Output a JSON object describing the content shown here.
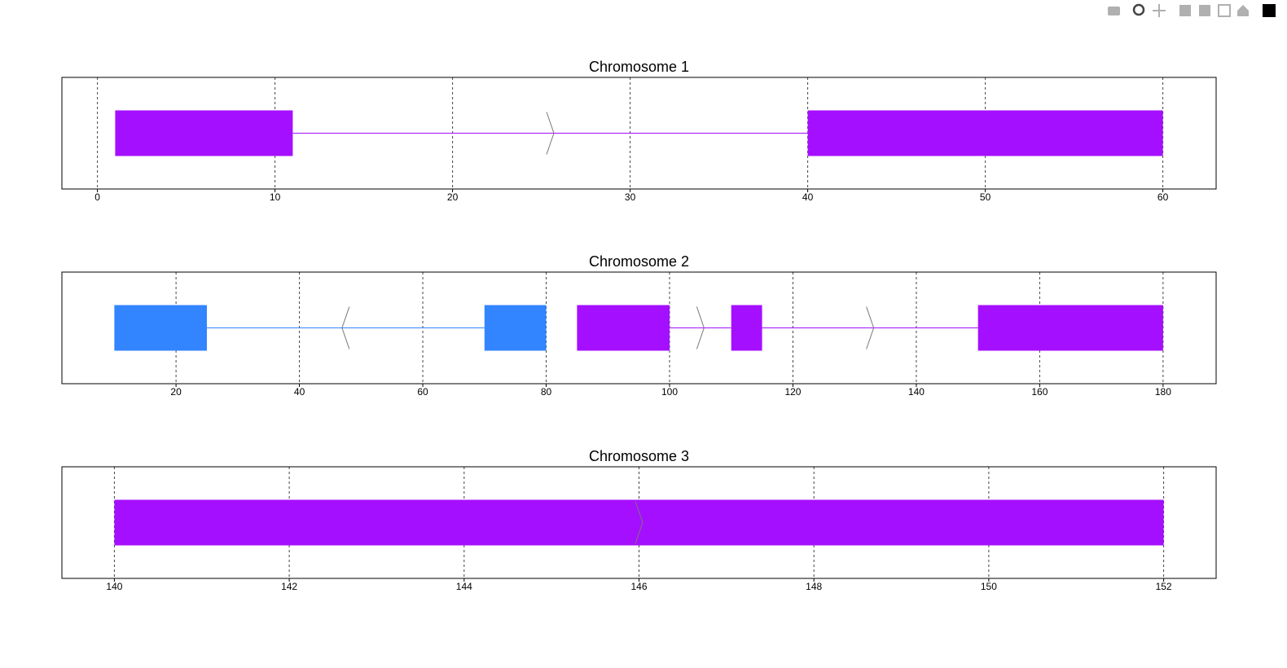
{
  "chart_data": [
    {
      "type": "gene-track",
      "title": "Chromosome 1",
      "xlim": [
        -2,
        63
      ],
      "xticks": [
        0,
        10,
        20,
        30,
        40,
        50,
        60
      ],
      "grid": true,
      "genes": [
        {
          "color": "#a50fff",
          "exons": [
            [
              1,
              11
            ],
            [
              40,
              60
            ]
          ],
          "arrows": [
            {
              "x": 25.5,
              "direction": 1
            }
          ]
        }
      ]
    },
    {
      "type": "gene-track",
      "title": "Chromosome 2",
      "xlim": [
        1.5,
        188.6
      ],
      "xticks": [
        20,
        40,
        60,
        80,
        100,
        120,
        140,
        160,
        180
      ],
      "grid": true,
      "genes": [
        {
          "color": "#3385ff",
          "exons": [
            [
              10,
              25
            ],
            [
              70,
              80
            ]
          ],
          "arrows": [
            {
              "x": 47.5,
              "direction": -1
            }
          ]
        },
        {
          "color": "#a50fff",
          "exons": [
            [
              85,
              100
            ],
            [
              110,
              115
            ],
            [
              150,
              180
            ]
          ],
          "arrows": [
            {
              "x": 105,
              "direction": 1
            },
            {
              "x": 132.5,
              "direction": 1
            }
          ]
        }
      ]
    },
    {
      "type": "gene-track",
      "title": "Chromosome 3",
      "xlim": [
        139.4,
        152.6
      ],
      "xticks": [
        140,
        142,
        144,
        146,
        148,
        150,
        152
      ],
      "grid": true,
      "genes": [
        {
          "color": "#a50fff",
          "exons": [
            [
              140,
              152
            ]
          ],
          "arrows": [
            {
              "x": 146,
              "direction": 1
            }
          ]
        }
      ]
    }
  ]
}
